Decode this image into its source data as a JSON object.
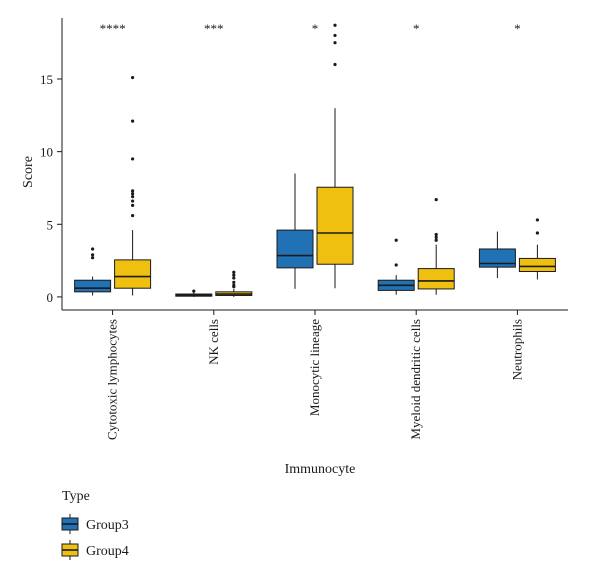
{
  "chart_data": {
    "type": "box",
    "xlabel": "Immunocyte",
    "ylabel": "Score",
    "ylim": [
      -0.9,
      19.2
    ],
    "yticks": [
      0,
      5,
      10,
      15
    ],
    "categories": [
      "Cytotoxic lymphocytes",
      "NK cells",
      "Monocytic lineage",
      "Myeloid dendritic cells",
      "Neutrophils"
    ],
    "significance": [
      "****",
      "***",
      "*",
      "*",
      "*"
    ],
    "legend": {
      "title": "Type",
      "position": "bottom-left"
    },
    "series": [
      {
        "name": "Group3",
        "color": "#2171b5",
        "boxes": [
          {
            "min": 0.1,
            "q1": 0.35,
            "median": 0.6,
            "q3": 1.15,
            "max": 1.4,
            "outliers": [
              2.7,
              2.9,
              3.3
            ]
          },
          {
            "min": 0.0,
            "q1": 0.05,
            "median": 0.12,
            "q3": 0.2,
            "max": 0.3,
            "outliers": [
              0.4
            ]
          },
          {
            "min": 0.55,
            "q1": 2.0,
            "median": 2.85,
            "q3": 4.6,
            "max": 8.5,
            "outliers": []
          },
          {
            "min": 0.15,
            "q1": 0.45,
            "median": 0.8,
            "q3": 1.15,
            "max": 1.5,
            "outliers": [
              2.2,
              3.9
            ]
          },
          {
            "min": 1.3,
            "q1": 2.05,
            "median": 2.3,
            "q3": 3.3,
            "max": 4.5,
            "outliers": []
          }
        ]
      },
      {
        "name": "Group4",
        "color": "#f0c010",
        "boxes": [
          {
            "min": 0.1,
            "q1": 0.6,
            "median": 1.4,
            "q3": 2.55,
            "max": 4.6,
            "outliers": [
              5.6,
              6.3,
              6.6,
              6.9,
              7.1,
              7.3,
              9.5,
              12.1,
              15.1
            ]
          },
          {
            "min": 0.0,
            "q1": 0.1,
            "median": 0.2,
            "q3": 0.35,
            "max": 0.55,
            "outliers": [
              0.7,
              0.8,
              1.0,
              1.3,
              1.5,
              1.7
            ]
          },
          {
            "min": 0.6,
            "q1": 2.25,
            "median": 4.4,
            "q3": 7.55,
            "max": 13.0,
            "outliers": [
              16.0,
              17.5,
              18.0,
              18.7
            ]
          },
          {
            "min": 0.15,
            "q1": 0.55,
            "median": 1.1,
            "q3": 1.95,
            "max": 3.6,
            "outliers": [
              3.9,
              4.1,
              4.3,
              6.7
            ]
          },
          {
            "min": 1.2,
            "q1": 1.75,
            "median": 2.1,
            "q3": 2.65,
            "max": 3.6,
            "outliers": [
              4.4,
              5.3
            ]
          }
        ]
      }
    ]
  }
}
